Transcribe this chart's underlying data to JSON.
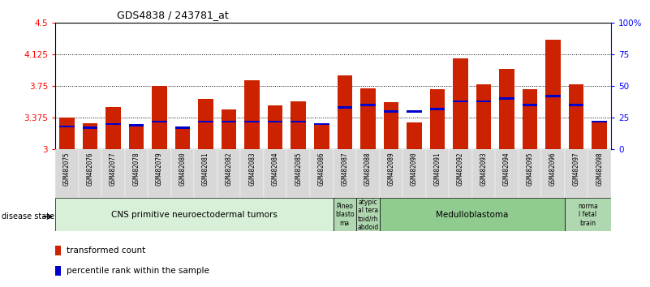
{
  "title": "GDS4838 / 243781_at",
  "samples": [
    "GSM482075",
    "GSM482076",
    "GSM482077",
    "GSM482078",
    "GSM482079",
    "GSM482080",
    "GSM482081",
    "GSM482082",
    "GSM482083",
    "GSM482084",
    "GSM482085",
    "GSM482086",
    "GSM482087",
    "GSM482088",
    "GSM482089",
    "GSM482090",
    "GSM482091",
    "GSM482092",
    "GSM482093",
    "GSM482094",
    "GSM482095",
    "GSM482096",
    "GSM482097",
    "GSM482098"
  ],
  "transformed_count": [
    3.375,
    3.31,
    3.5,
    3.27,
    3.75,
    3.27,
    3.6,
    3.47,
    3.82,
    3.52,
    3.57,
    3.31,
    3.88,
    3.72,
    3.56,
    3.32,
    3.71,
    4.08,
    3.77,
    3.95,
    3.71,
    4.3,
    3.77,
    3.32
  ],
  "percentile_rank": [
    18,
    17,
    20,
    19,
    22,
    17,
    22,
    22,
    22,
    22,
    22,
    20,
    33,
    35,
    30,
    30,
    32,
    38,
    38,
    40,
    35,
    42,
    35,
    22
  ],
  "bar_color": "#cc2200",
  "percentile_color": "#0000cc",
  "ymin": 3.0,
  "ymax": 4.5,
  "yticks": [
    3.0,
    3.375,
    3.75,
    4.125,
    4.5
  ],
  "ytick_labels": [
    "3",
    "3.375",
    "3.75",
    "4.125",
    "4.5"
  ],
  "right_ytick_labels": [
    "0",
    "25",
    "50",
    "75",
    "100%"
  ],
  "groups": [
    {
      "label": "CNS primitive neuroectodermal tumors",
      "start": 0,
      "end": 12,
      "color": "#d8f0d8"
    },
    {
      "label": "Pineo\nblasto\nma",
      "start": 12,
      "end": 13,
      "color": "#b0d8b0"
    },
    {
      "label": "atypic\nal tera\ntoid/rh\nabdoid",
      "start": 13,
      "end": 14,
      "color": "#b0d8b0"
    },
    {
      "label": "Medulloblastoma",
      "start": 14,
      "end": 22,
      "color": "#90cc90"
    },
    {
      "label": "norma\nl fetal\nbrain",
      "start": 22,
      "end": 24,
      "color": "#b0d8b0"
    }
  ],
  "disease_state_label": "disease state",
  "legend_items": [
    {
      "label": "transformed count",
      "color": "#cc2200"
    },
    {
      "label": "percentile rank within the sample",
      "color": "#0000cc"
    }
  ]
}
